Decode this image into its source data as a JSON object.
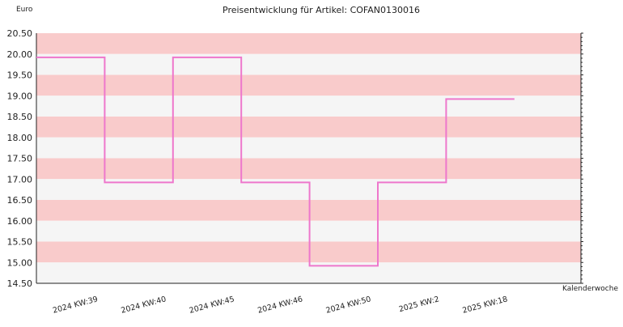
{
  "chart_data": {
    "type": "line",
    "step": true,
    "title": "Preisentwicklung für Artikel: COFAN0130016",
    "ylabel": "Euro",
    "xlabel": "Kalenderwoche",
    "ylim": [
      14.5,
      20.5
    ],
    "yticks": [
      "14.50",
      "15.00",
      "15.50",
      "16.00",
      "16.50",
      "17.00",
      "17.50",
      "18.00",
      "18.50",
      "19.00",
      "19.50",
      "20.00",
      "20.50"
    ],
    "categories": [
      "2024 KW:39",
      "2024 KW:40",
      "2024 KW:45",
      "2024 KW:46",
      "2024 KW:50",
      "2025 KW:2",
      "2025 KW:18"
    ],
    "values": [
      19.92,
      16.92,
      19.92,
      16.92,
      14.92,
      16.92,
      18.92
    ],
    "grid": true,
    "colors": {
      "line": "#ee77cc",
      "band_a": "#f9cbcb",
      "band_b": "#f5f5f5",
      "axis": "#222222"
    }
  }
}
